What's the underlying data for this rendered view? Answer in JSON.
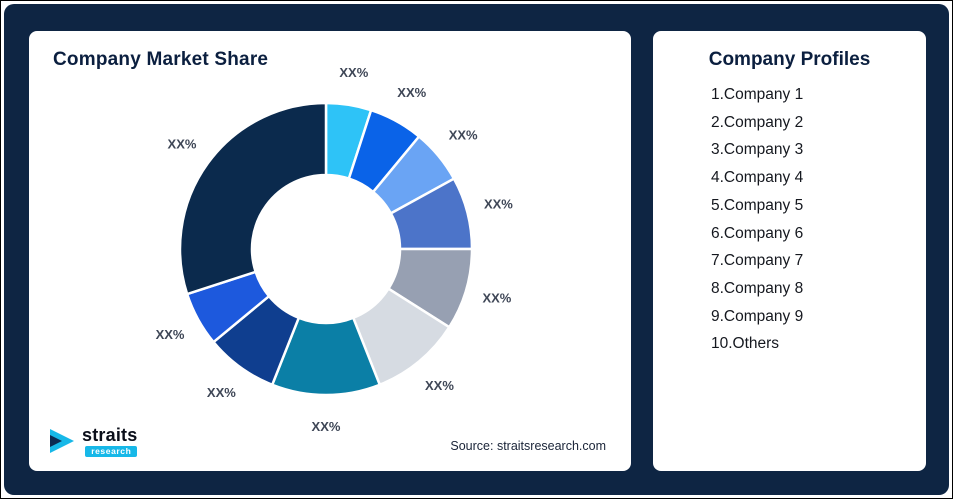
{
  "page": {
    "background_color": "#0E2543",
    "card_color": "#FFFFFF"
  },
  "chart_data": {
    "type": "pie",
    "subtype": "donut",
    "title": "Company Market Share",
    "source": "Source: straitsresearch.com",
    "legend": "none",
    "direction": "clockwise",
    "start_angle_deg": -90,
    "segments": [
      {
        "label": "XX%",
        "value": 5,
        "color": "#2EC3F7"
      },
      {
        "label": "XX%",
        "value": 6,
        "color": "#0A63E8"
      },
      {
        "label": "XX%",
        "value": 6,
        "color": "#6AA4F4"
      },
      {
        "label": "XX%",
        "value": 8,
        "color": "#4C74C9"
      },
      {
        "label": "XX%",
        "value": 9,
        "color": "#97A0B2"
      },
      {
        "label": "XX%",
        "value": 10,
        "color": "#D6DBE2"
      },
      {
        "label": "XX%",
        "value": 12,
        "color": "#0B7FA6"
      },
      {
        "label": "XX%",
        "value": 8,
        "color": "#0F3E8F"
      },
      {
        "label": "XX%",
        "value": 6,
        "color": "#1D59DD"
      },
      {
        "label": "XX%",
        "value": 30,
        "color": "#0B2A4D"
      }
    ]
  },
  "logo": {
    "brand": "straits",
    "sub": "research",
    "accent": "#17B8E8"
  },
  "right_panel": {
    "title": "Company Profiles",
    "items": [
      "1.Company 1",
      "2.Company 2",
      "3.Company 3",
      "4.Company 4",
      "5.Company 5",
      "6.Company 6",
      "7.Company 7",
      "8.Company 8",
      "9.Company 9",
      "10.Others"
    ]
  }
}
